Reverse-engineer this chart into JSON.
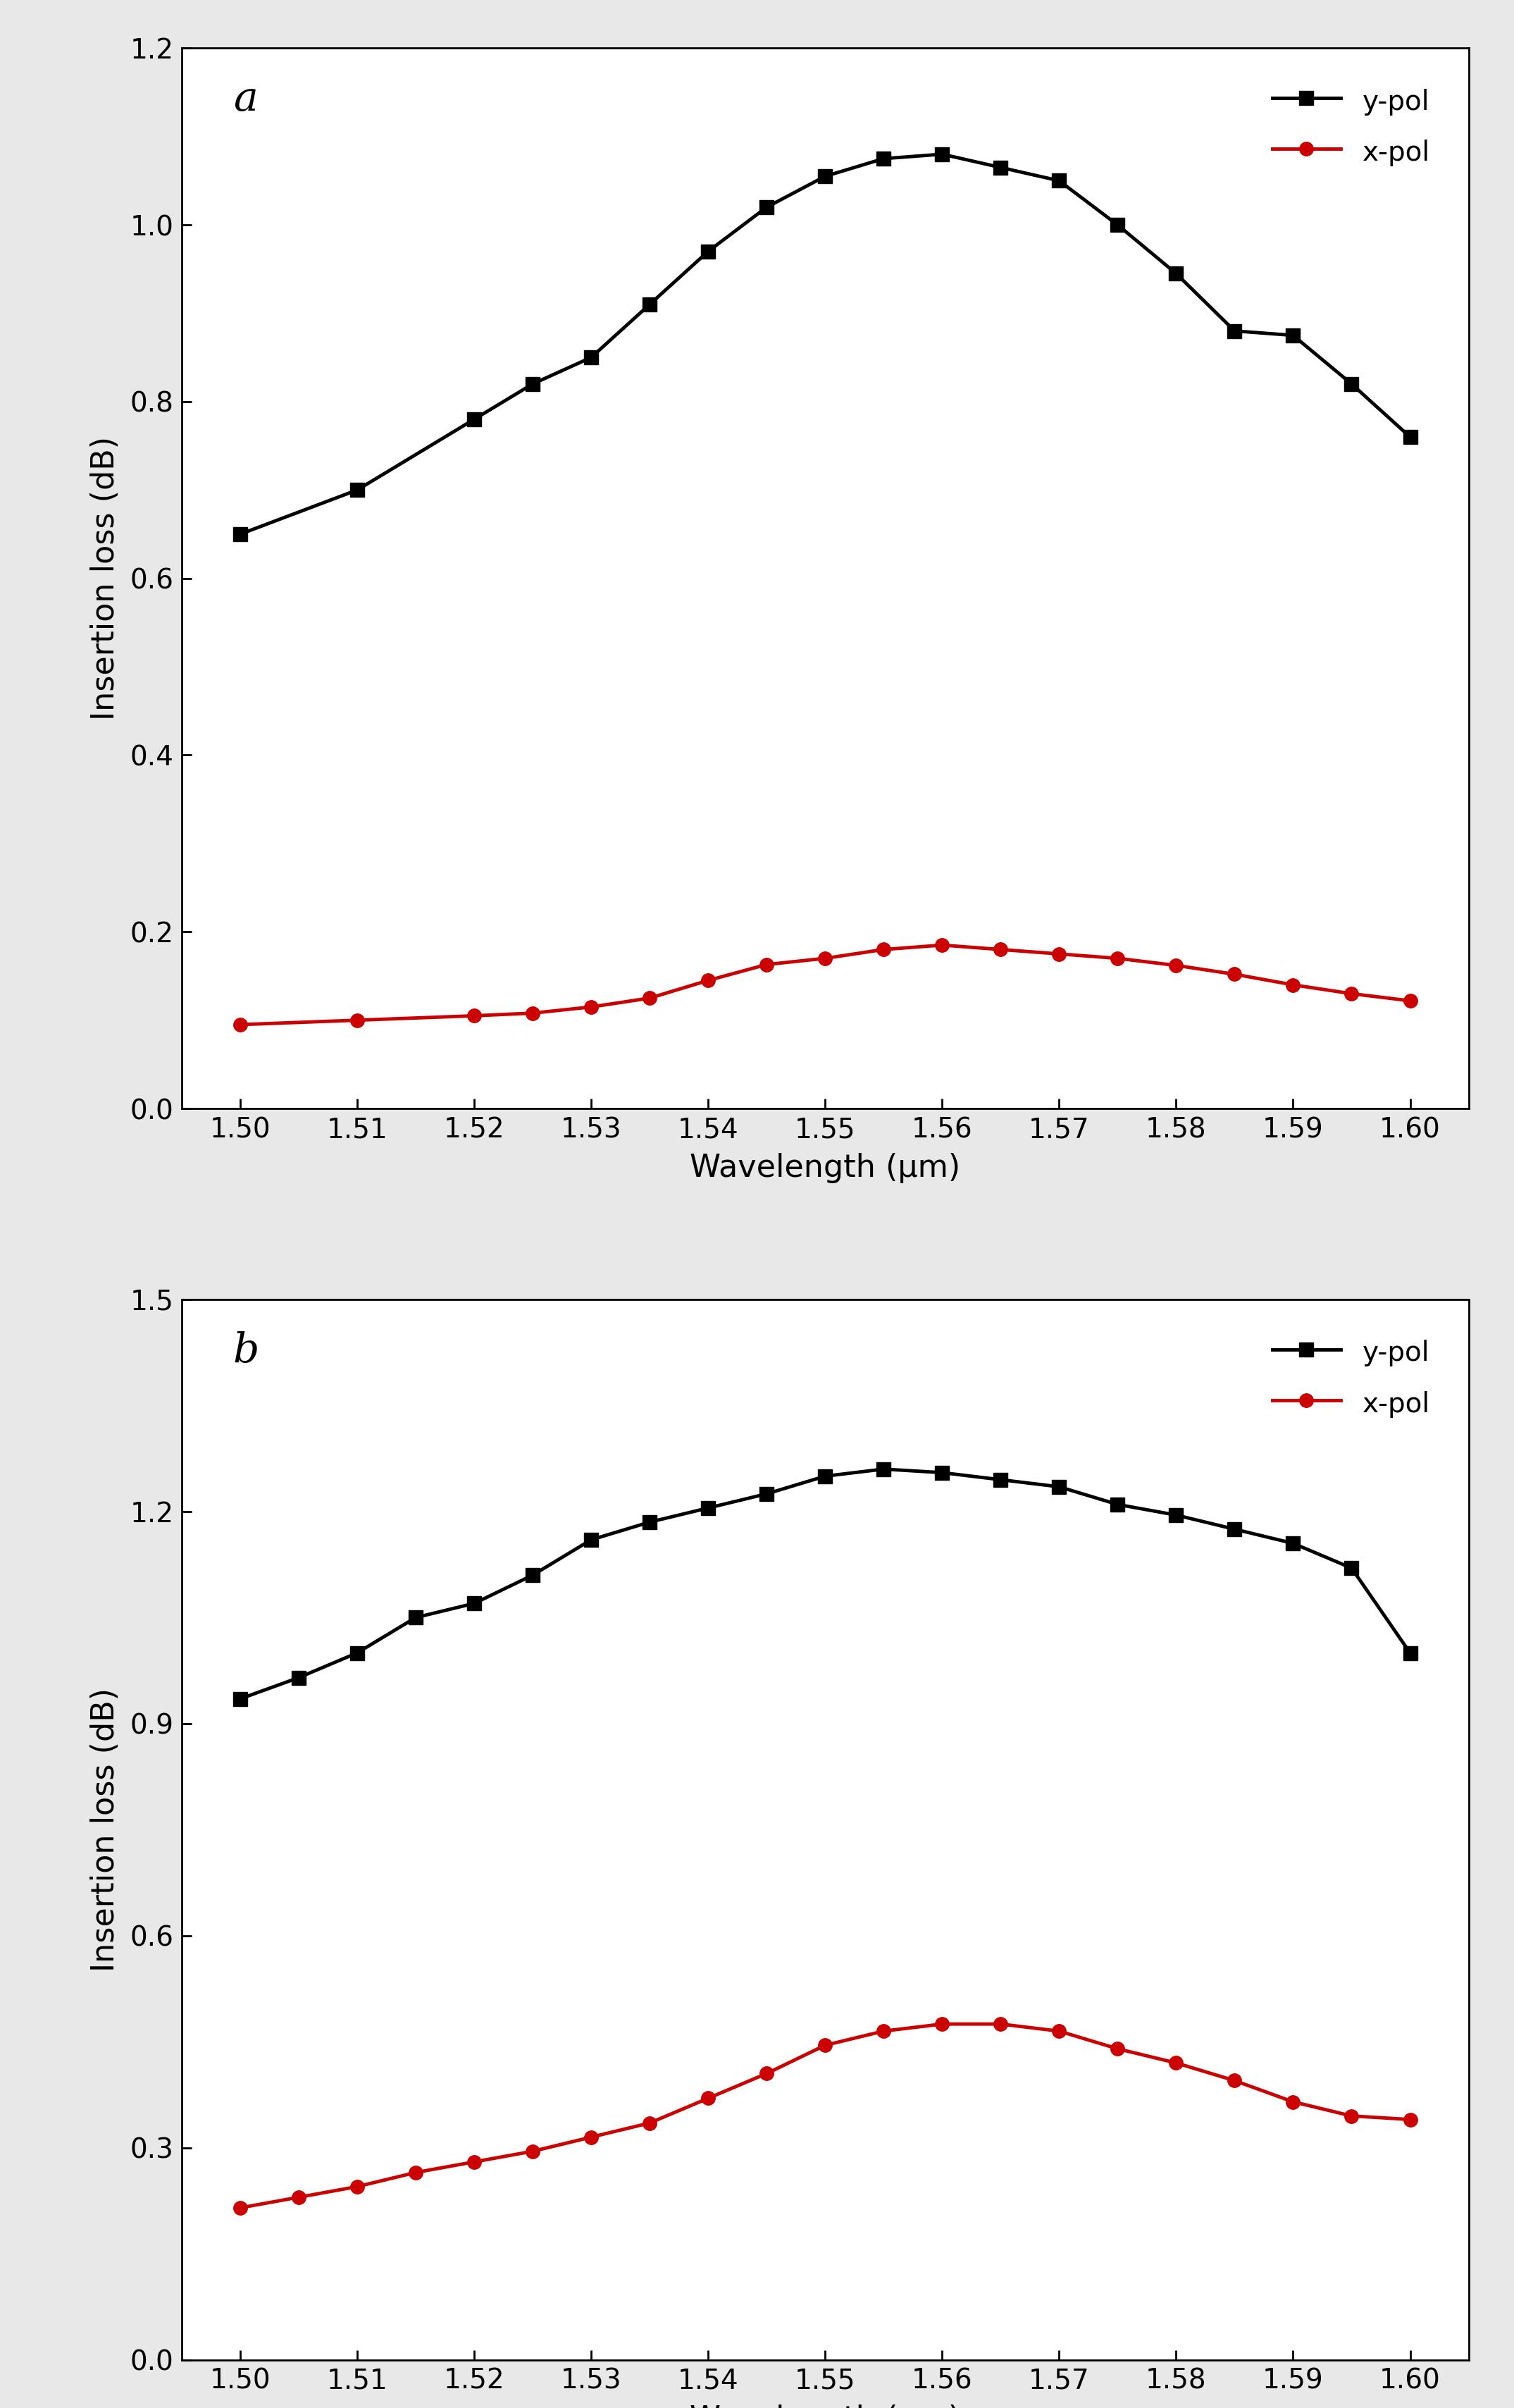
{
  "wav_a": [
    1.5,
    1.51,
    1.52,
    1.525,
    1.53,
    1.535,
    1.54,
    1.545,
    1.55,
    1.555,
    1.56,
    1.565,
    1.57,
    1.575,
    1.58,
    1.585,
    1.59,
    1.595,
    1.6
  ],
  "wav_b": [
    1.5,
    1.505,
    1.51,
    1.515,
    1.52,
    1.525,
    1.53,
    1.535,
    1.54,
    1.545,
    1.55,
    1.555,
    1.56,
    1.565,
    1.57,
    1.575,
    1.58,
    1.585,
    1.59,
    1.595,
    1.6
  ],
  "panel_a": {
    "y_pol": [
      0.65,
      0.7,
      0.78,
      0.82,
      0.85,
      0.91,
      0.97,
      1.02,
      1.055,
      1.075,
      1.08,
      1.065,
      1.05,
      1.0,
      0.945,
      0.88,
      0.875,
      0.82,
      0.76
    ],
    "x_pol": [
      0.095,
      0.1,
      0.105,
      0.108,
      0.115,
      0.125,
      0.145,
      0.163,
      0.17,
      0.18,
      0.185,
      0.18,
      0.175,
      0.17,
      0.162,
      0.152,
      0.14,
      0.13,
      0.122
    ],
    "ylim": [
      0.0,
      1.2
    ],
    "yticks": [
      0.0,
      0.2,
      0.4,
      0.6,
      0.8,
      1.0,
      1.2
    ],
    "label": "a"
  },
  "panel_b": {
    "y_pol": [
      0.935,
      0.965,
      1.0,
      1.05,
      1.07,
      1.11,
      1.16,
      1.185,
      1.205,
      1.225,
      1.25,
      1.26,
      1.255,
      1.245,
      1.235,
      1.21,
      1.195,
      1.175,
      1.155,
      1.12,
      1.0
    ],
    "x_pol": [
      0.215,
      0.23,
      0.245,
      0.265,
      0.28,
      0.295,
      0.315,
      0.335,
      0.37,
      0.405,
      0.445,
      0.465,
      0.475,
      0.475,
      0.465,
      0.44,
      0.42,
      0.395,
      0.365,
      0.345,
      0.34
    ],
    "ylim": [
      0.0,
      1.5
    ],
    "yticks": [
      0.0,
      0.3,
      0.6,
      0.9,
      1.2,
      1.5
    ],
    "label": "b"
  },
  "xticks": [
    1.5,
    1.51,
    1.52,
    1.53,
    1.54,
    1.55,
    1.56,
    1.57,
    1.58,
    1.59,
    1.6
  ],
  "xlabel": "Wavelength (μm)",
  "ylabel": "Insertion loss (dB)",
  "color_y_pol": "#000000",
  "color_x_pol": "#cc0000",
  "background_color": "#ffffff",
  "fig_background": "#e8e8e8"
}
